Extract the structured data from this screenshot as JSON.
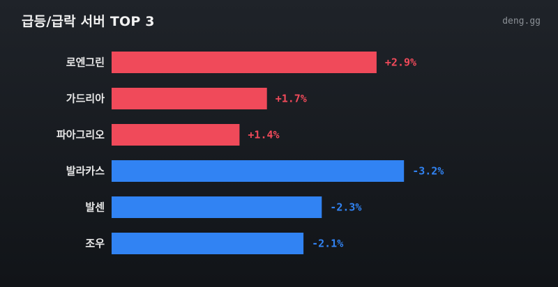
{
  "header": {
    "title": "급등/급락 서버 TOP 3",
    "brand": "deng.gg"
  },
  "colors": {
    "up": "#f04a5a",
    "down": "#3183f3",
    "background": "#1a1d22"
  },
  "chart_data": {
    "type": "bar",
    "orientation": "horizontal",
    "title": "급등/급락 서버 TOP 3",
    "categories": [
      "로엔그린",
      "가드리아",
      "파아그리오",
      "발라카스",
      "발센",
      "조우"
    ],
    "values": [
      2.9,
      1.7,
      1.4,
      -3.2,
      -2.3,
      -2.1
    ],
    "value_labels": [
      "+2.9%",
      "+1.7%",
      "+1.4%",
      "-3.2%",
      "-2.3%",
      "-2.1%"
    ],
    "unit": "%",
    "bar_length_encodes": "absolute value",
    "positive_color": "#f04a5a",
    "negative_color": "#3183f3",
    "grid": false,
    "legend": "none"
  }
}
